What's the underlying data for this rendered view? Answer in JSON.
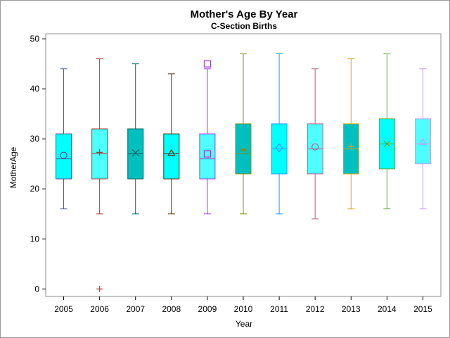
{
  "chart_data": {
    "type": "box",
    "title": "Mother's Age By Year",
    "subtitle": "C-Section Births",
    "xlabel": "Year",
    "ylabel": "MotherAge",
    "ylim": [
      -1.5,
      51
    ],
    "yticks": [
      0,
      10,
      20,
      30,
      40,
      50
    ],
    "grid": false,
    "categories": [
      "2005",
      "2006",
      "2007",
      "2008",
      "2009",
      "2010",
      "2011",
      "2012",
      "2013",
      "2014",
      "2015"
    ],
    "series": [
      {
        "category": "2005",
        "min": 16,
        "q1": 22,
        "median": 26,
        "q3": 31,
        "max": 44,
        "mean": 26.7,
        "outliers": [],
        "fill": "#00FFFF",
        "stroke": "#445694",
        "marker": "circle"
      },
      {
        "category": "2006",
        "min": 15,
        "q1": 22,
        "median": 27,
        "q3": 32,
        "max": 46,
        "mean": 27.3,
        "outliers": [
          0
        ],
        "fill": "#4DFFFF",
        "stroke": "#A23A2E",
        "marker": "plus"
      },
      {
        "category": "2007",
        "min": 15,
        "q1": 22,
        "median": 27,
        "q3": 32,
        "max": 45,
        "mean": 27.2,
        "outliers": [],
        "fill": "#00BFBF",
        "stroke": "#01665E",
        "marker": "x"
      },
      {
        "category": "2008",
        "min": 15,
        "q1": 22,
        "median": 27,
        "q3": 31,
        "max": 43,
        "mean": 27.2,
        "outliers": [],
        "fill": "#00FFFF",
        "stroke": "#543005",
        "marker": "triangle"
      },
      {
        "category": "2009",
        "min": 15,
        "q1": 22,
        "median": 26,
        "q3": 31,
        "max": 44,
        "mean": 27.0,
        "outliers": [
          45
        ],
        "fill": "#4DFFFF",
        "stroke": "#9D3CDB",
        "marker": "square"
      },
      {
        "category": "2010",
        "min": 15,
        "q1": 23,
        "median": 27,
        "q3": 33,
        "max": 47,
        "mean": 27.8,
        "outliers": [],
        "fill": "#00BFBF",
        "stroke": "#7F8E1F",
        "marker": "star"
      },
      {
        "category": "2011",
        "min": 15,
        "q1": 23,
        "median": 28,
        "q3": 33,
        "max": 47,
        "mean": 28.2,
        "outliers": [],
        "fill": "#00FFFF",
        "stroke": "#2597FA",
        "marker": "diamond"
      },
      {
        "category": "2012",
        "min": 14,
        "q1": 23,
        "median": 28,
        "q3": 33,
        "max": 44,
        "mean": 28.4,
        "outliers": [],
        "fill": "#4DFFFF",
        "stroke": "#B26084",
        "marker": "circle"
      },
      {
        "category": "2013",
        "min": 16,
        "q1": 23,
        "median": 28,
        "q3": 33,
        "max": 46,
        "mean": 28.5,
        "outliers": [],
        "fill": "#00BFBF",
        "stroke": "#D8A219",
        "marker": "plus"
      },
      {
        "category": "2014",
        "min": 16,
        "q1": 24,
        "median": 29,
        "q3": 34,
        "max": 47,
        "mean": 29.0,
        "outliers": [],
        "fill": "#00FFFF",
        "stroke": "#5BA935",
        "marker": "x"
      },
      {
        "category": "2015",
        "min": 16,
        "q1": 25,
        "median": 29,
        "q3": 34,
        "max": 44,
        "mean": 29.4,
        "outliers": [],
        "fill": "#4DFFFF",
        "stroke": "#C29BF5",
        "marker": "triangle"
      }
    ]
  }
}
